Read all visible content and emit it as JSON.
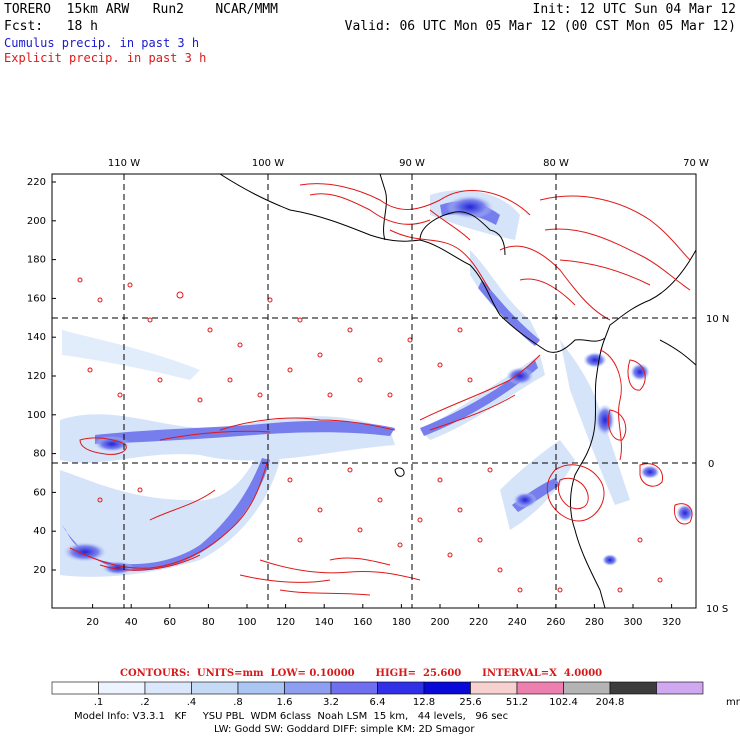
{
  "header": {
    "model": "TORERO  15km ARW   Run2    NCAR/MMM",
    "init": "Init: 12 UTC Sun 04 Mar 12",
    "fcst": "Fcst:   18 h",
    "valid": "Valid: 06 UTC Mon 05 Mar 12 (00 CST Mon 05 Mar 12)",
    "cumulus": "Cumulus precip. in past 3 h",
    "explicit": "Explicit precip. in past 3 h"
  },
  "map": {
    "lon_labels": [
      "110 W",
      "100 W",
      "90 W",
      "80 W",
      "70 W"
    ],
    "lat_labels": [
      "10 N",
      "0",
      "10 S"
    ],
    "y_ticks": [
      "220",
      "200",
      "180",
      "160",
      "140",
      "120",
      "100",
      "80",
      "60",
      "40",
      "20"
    ],
    "x_ticks": [
      "20",
      "40",
      "60",
      "80",
      "100",
      "120",
      "140",
      "160",
      "180",
      "200",
      "220",
      "240",
      "260",
      "280",
      "300",
      "320"
    ]
  },
  "contours_line": "CONTOURS:  UNITS=mm  LOW= 0.10000      HIGH=  25.600      INTERVAL=X  4.0000",
  "colorbar": {
    "labels": [
      ".1",
      ".2",
      ".4",
      ".8",
      "1.6",
      "3.2",
      "6.4",
      "12.8",
      "25.6",
      "51.2",
      "102.4",
      "204.8"
    ],
    "unit": "mm",
    "colors": [
      "#ffffff",
      "#eef4ff",
      "#dbe8fb",
      "#c4daf5",
      "#abc6f2",
      "#8e9ef0",
      "#6f6ff0",
      "#3030e8",
      "#0808d8",
      "#f7d0d0",
      "#ee80b0",
      "#b4b4b4",
      "#3c3c3c",
      "#d0a8f0"
    ]
  },
  "model_info": {
    "line1": "Model Info: V3.3.1   KF     YSU PBL  WDM 6class  Noah LSM  15 km,   44 levels,   96 sec",
    "line2": "LW: Godd SW: Goddard DIFF: simple KM: 2D Smagor"
  }
}
